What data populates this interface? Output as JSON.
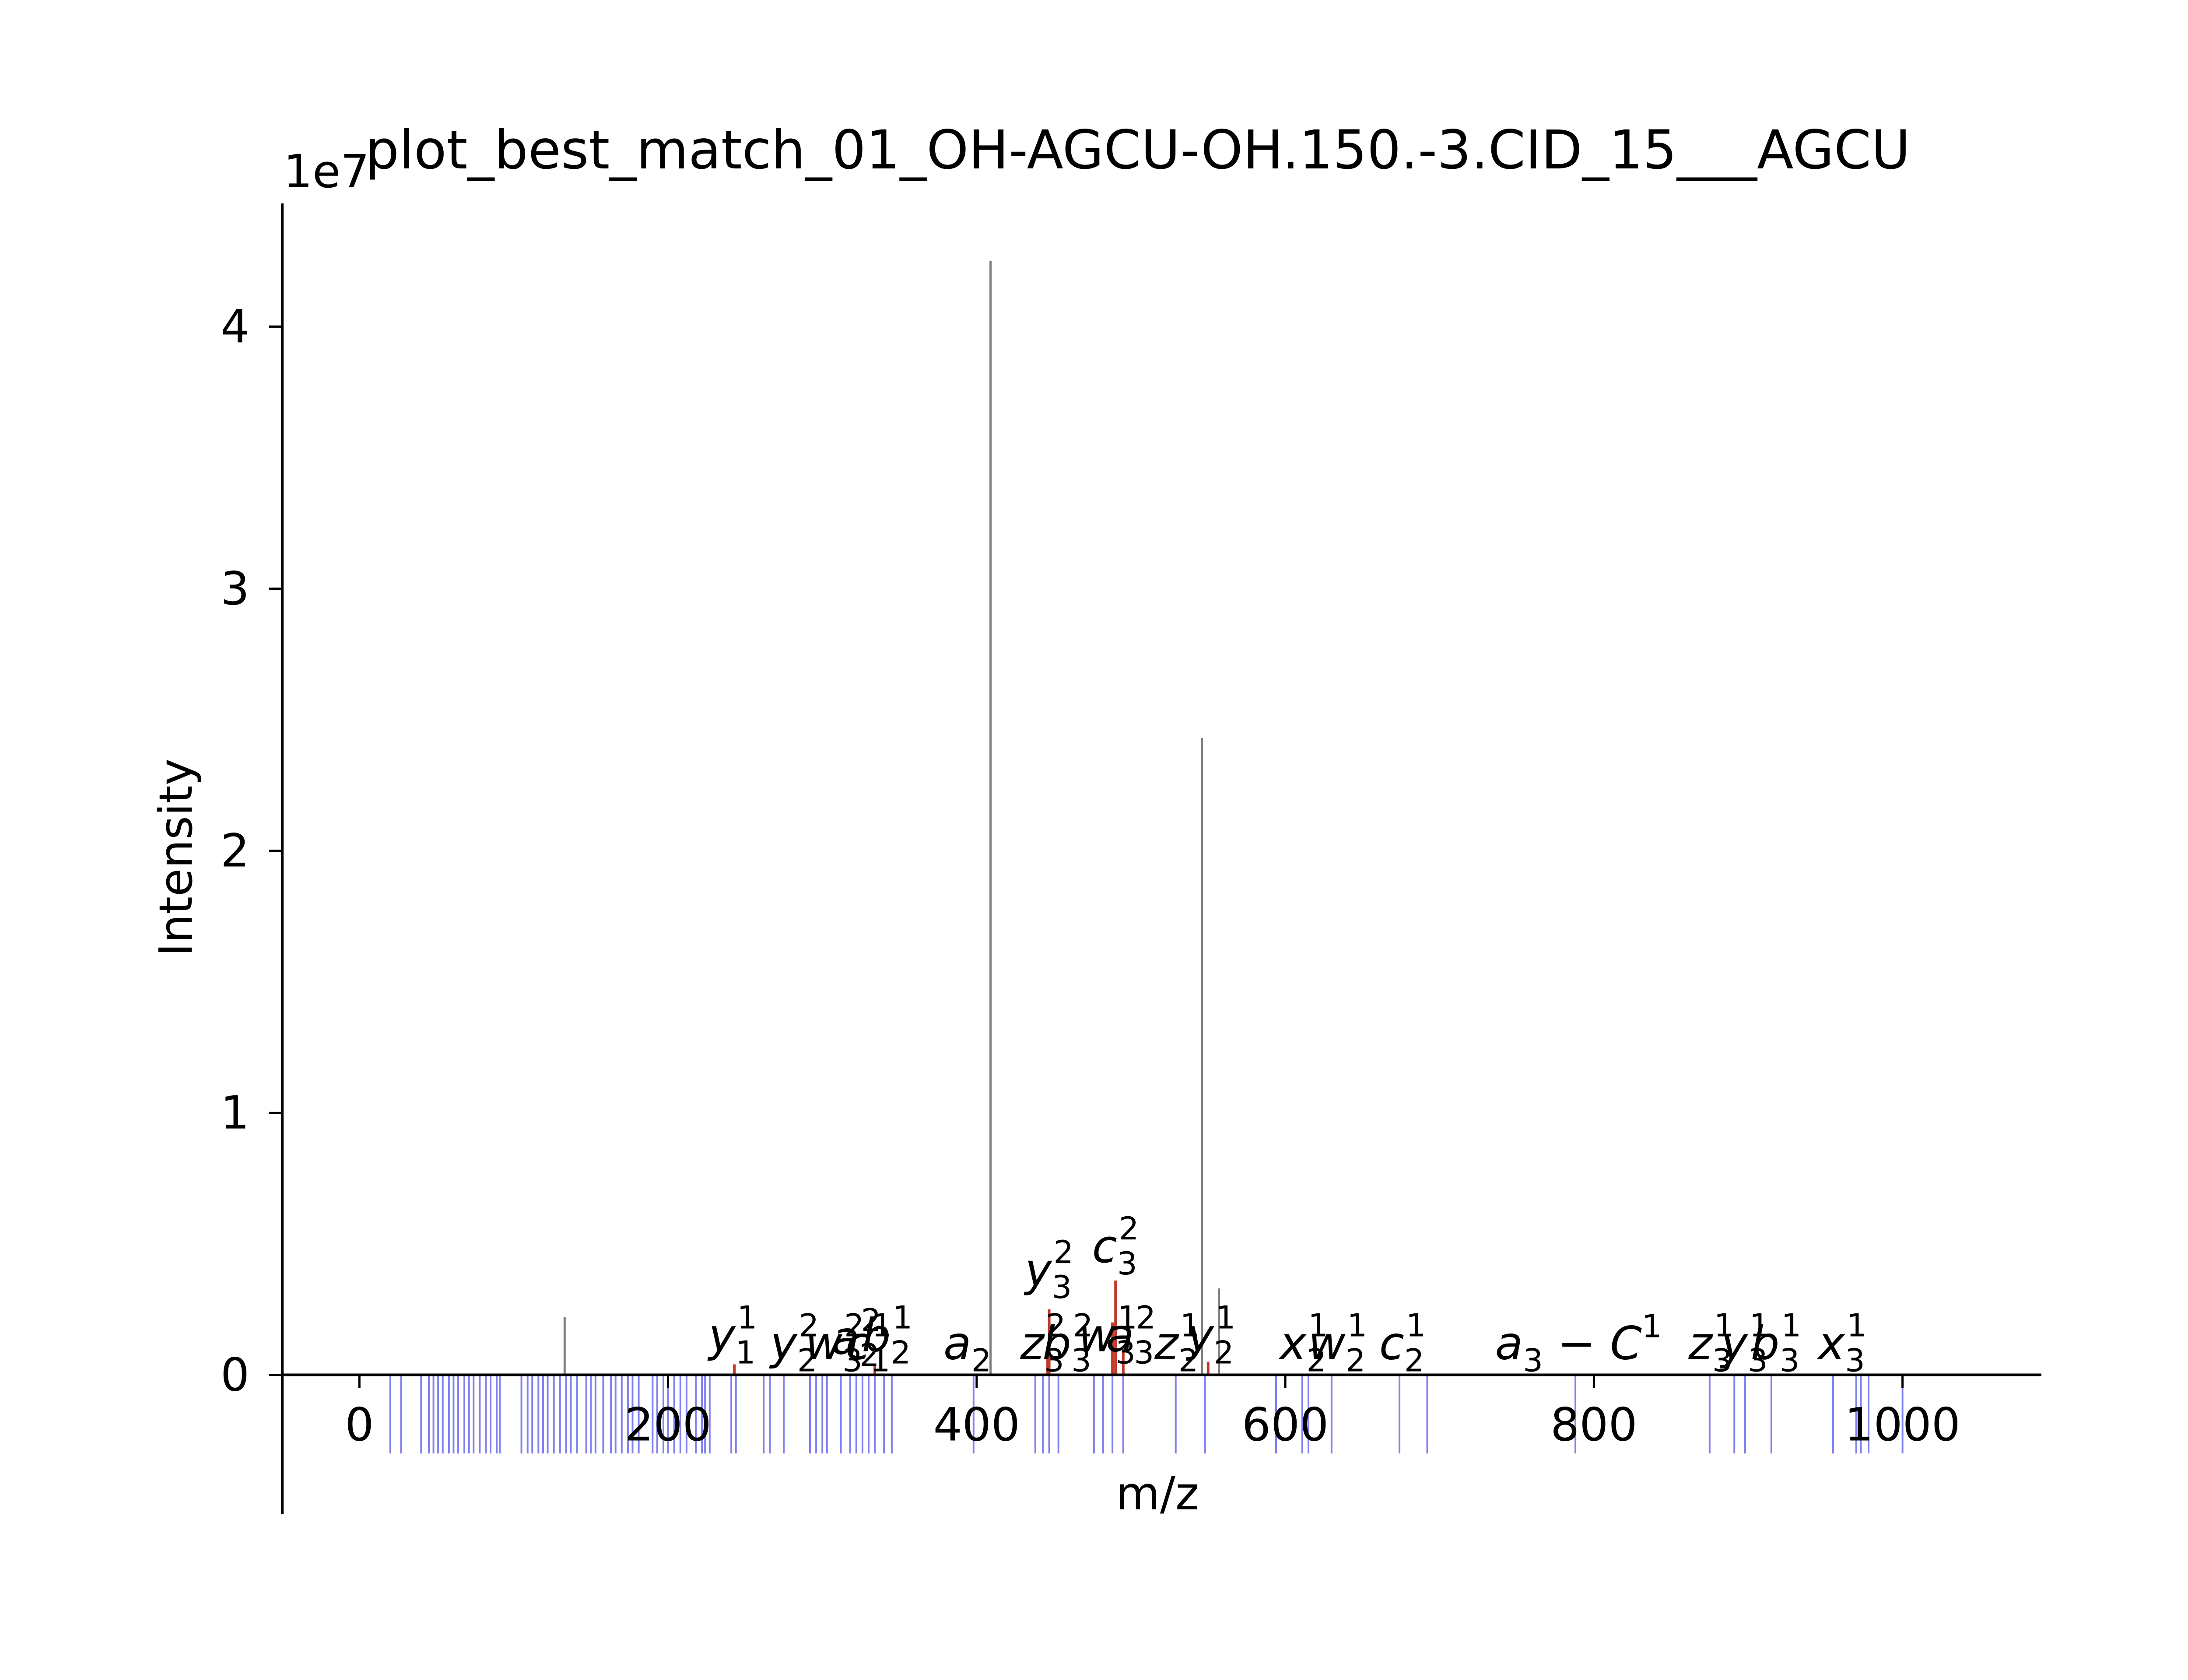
{
  "chart_data": {
    "type": "bar",
    "title": "plot_best_match_01_OH-AGCU-OH.150.-3.CID_15___AGCU",
    "xlabel": "m/z",
    "ylabel": "Intensity",
    "y_offset_label": "1e7",
    "xlim": [
      -50,
      1090
    ],
    "ylim": [
      -0.53,
      4.47
    ],
    "y_unit_multiplier": 10000000,
    "xticks": [
      0,
      200,
      400,
      600,
      800,
      1000
    ],
    "xtick_labels": [
      "0",
      "200",
      "400",
      "600",
      "800",
      "1000"
    ],
    "yticks": [
      0,
      1,
      2,
      3,
      4
    ],
    "ytick_labels": [
      "0",
      "1",
      "2",
      "3",
      "4"
    ],
    "grid": false,
    "colors": {
      "observed_peak": "#808080",
      "matched_peak": "#c0392b",
      "theoretical_marker": "#5555ee",
      "axis": "#000000"
    },
    "series": [
      {
        "role": "observed",
        "points": [
          {
            "mz": 133,
            "intensity": 0.22
          },
          {
            "mz": 409,
            "intensity": 4.25
          },
          {
            "mz": 546,
            "intensity": 2.43
          },
          {
            "mz": 557,
            "intensity": 0.33
          }
        ]
      },
      {
        "role": "matched",
        "points": [
          {
            "mz": 243,
            "intensity": 0.04
          },
          {
            "mz": 334,
            "intensity": 0.04
          },
          {
            "mz": 446,
            "intensity": 0.06
          },
          {
            "mz": 447,
            "intensity": 0.25
          },
          {
            "mz": 488,
            "intensity": 0.2
          },
          {
            "mz": 490,
            "intensity": 0.36
          },
          {
            "mz": 495,
            "intensity": 0.1
          },
          {
            "mz": 550,
            "intensity": 0.05
          }
        ]
      },
      {
        "role": "theoretical",
        "points": [
          {
            "mz": 20
          },
          {
            "mz": 27
          },
          {
            "mz": 40
          },
          {
            "mz": 45
          },
          {
            "mz": 48
          },
          {
            "mz": 51
          },
          {
            "mz": 54
          },
          {
            "mz": 58
          },
          {
            "mz": 61
          },
          {
            "mz": 64
          },
          {
            "mz": 68
          },
          {
            "mz": 71
          },
          {
            "mz": 74
          },
          {
            "mz": 78
          },
          {
            "mz": 82
          },
          {
            "mz": 85
          },
          {
            "mz": 89
          },
          {
            "mz": 91
          },
          {
            "mz": 105
          },
          {
            "mz": 109
          },
          {
            "mz": 112
          },
          {
            "mz": 116
          },
          {
            "mz": 119
          },
          {
            "mz": 122
          },
          {
            "mz": 126
          },
          {
            "mz": 130
          },
          {
            "mz": 134
          },
          {
            "mz": 137
          },
          {
            "mz": 141
          },
          {
            "mz": 147
          },
          {
            "mz": 150
          },
          {
            "mz": 153
          },
          {
            "mz": 158
          },
          {
            "mz": 163
          },
          {
            "mz": 166
          },
          {
            "mz": 170
          },
          {
            "mz": 174
          },
          {
            "mz": 177
          },
          {
            "mz": 181
          },
          {
            "mz": 190
          },
          {
            "mz": 193
          },
          {
            "mz": 197
          },
          {
            "mz": 200
          },
          {
            "mz": 204
          },
          {
            "mz": 208
          },
          {
            "mz": 212
          },
          {
            "mz": 218
          },
          {
            "mz": 222
          },
          {
            "mz": 224
          },
          {
            "mz": 227
          },
          {
            "mz": 241
          },
          {
            "mz": 244
          },
          {
            "mz": 262
          },
          {
            "mz": 266
          },
          {
            "mz": 275
          },
          {
            "mz": 292
          },
          {
            "mz": 296
          },
          {
            "mz": 300
          },
          {
            "mz": 303
          },
          {
            "mz": 312
          },
          {
            "mz": 318
          },
          {
            "mz": 322
          },
          {
            "mz": 326
          },
          {
            "mz": 330
          },
          {
            "mz": 334
          },
          {
            "mz": 340
          },
          {
            "mz": 345
          },
          {
            "mz": 398
          },
          {
            "mz": 438
          },
          {
            "mz": 443
          },
          {
            "mz": 447
          },
          {
            "mz": 453
          },
          {
            "mz": 476
          },
          {
            "mz": 482
          },
          {
            "mz": 488
          },
          {
            "mz": 495
          },
          {
            "mz": 529
          },
          {
            "mz": 548
          },
          {
            "mz": 594
          },
          {
            "mz": 611
          },
          {
            "mz": 615
          },
          {
            "mz": 630
          },
          {
            "mz": 674
          },
          {
            "mz": 692
          },
          {
            "mz": 788
          },
          {
            "mz": 875
          },
          {
            "mz": 891
          },
          {
            "mz": 898
          },
          {
            "mz": 915
          },
          {
            "mz": 955
          },
          {
            "mz": 970
          },
          {
            "mz": 973
          },
          {
            "mz": 978
          },
          {
            "mz": 1000
          }
        ]
      }
    ],
    "annotations": [
      {
        "ion": "y",
        "sub": "1",
        "sup": "1",
        "mz": 242,
        "intensity": 0.09
      },
      {
        "ion": "y",
        "sub": "2",
        "sup": "2",
        "mz": 282,
        "intensity": 0.06
      },
      {
        "ion": "w",
        "sub": "3",
        "sup": "2",
        "mz": 308,
        "intensity": 0.06
      },
      {
        "ion": "c",
        "sub": "1",
        "sup": "1",
        "mz": 330,
        "intensity": 0.06
      },
      {
        "ion": "a",
        "sub": "2",
        "sup": "2",
        "mz": 322,
        "intensity": 0.08
      },
      {
        "ion": "b",
        "sub": "2",
        "sup": "1",
        "mz": 342,
        "intensity": 0.09
      },
      {
        "ion": "a",
        "sub": "2",
        "sup": "",
        "mz": 394,
        "intensity": 0.06
      },
      {
        "ion": "y",
        "sub": "3",
        "sup": "2",
        "mz": 447,
        "intensity": 0.34
      },
      {
        "ion": "c",
        "sub": "3",
        "sup": "2",
        "mz": 490,
        "intensity": 0.43
      },
      {
        "ion": "z",
        "sub": "3",
        "sup": "2",
        "mz": 443,
        "intensity": 0.06
      },
      {
        "ion": "b",
        "sub": "3",
        "sup": "2",
        "mz": 459,
        "intensity": 0.06
      },
      {
        "ion": "w",
        "sub": "3",
        "sup": "1",
        "mz": 485,
        "intensity": 0.09
      },
      {
        "ion": "a",
        "sub": "3",
        "sup": "2",
        "mz": 500,
        "intensity": 0.09
      },
      {
        "ion": "z",
        "sub": "2",
        "sup": "1",
        "mz": 530,
        "intensity": 0.06
      },
      {
        "ion": "y",
        "sub": "2",
        "sup": "1",
        "mz": 552,
        "intensity": 0.09
      },
      {
        "ion": "x",
        "sub": "2",
        "sup": "1",
        "mz": 612,
        "intensity": 0.06
      },
      {
        "ion": "w",
        "sub": "2",
        "sup": "1",
        "mz": 634,
        "intensity": 0.06
      },
      {
        "ion": "c",
        "sub": "2",
        "sup": "1",
        "mz": 676,
        "intensity": 0.06
      },
      {
        "ion": "a",
        "sub": "3",
        "sup": "1",
        "suffix": "C",
        "mz": 790,
        "intensity": 0.06
      },
      {
        "ion": "z",
        "sub": "3",
        "sup": "1",
        "mz": 876,
        "intensity": 0.06
      },
      {
        "ion": "y",
        "sub": "3",
        "sup": "1",
        "mz": 898,
        "intensity": 0.06
      },
      {
        "ion": "b",
        "sub": "3",
        "sup": "1",
        "mz": 918,
        "intensity": 0.06
      },
      {
        "ion": "x",
        "sub": "3",
        "sup": "1",
        "mz": 961,
        "intensity": 0.06
      }
    ]
  }
}
